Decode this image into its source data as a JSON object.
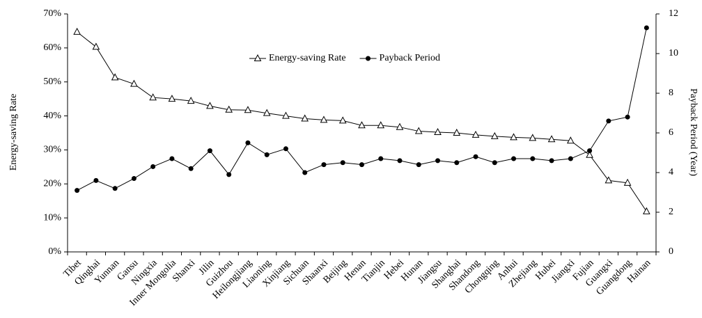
{
  "chart_data": {
    "type": "line",
    "y_label": "Energy-saving Rate",
    "y2_label": "Payback Period (Year)",
    "categories": [
      "Tibet",
      "Qinghai",
      "Yunnan",
      "Gansu",
      "Ningxia",
      "Inner Mongolia",
      "Shanxi",
      "Jilin",
      "Guizhou",
      "Heilongjiang",
      "Liaoning",
      "Xinjiang",
      "Sichuan",
      "Shaanxi",
      "Beijing",
      "Henan",
      "Tianjin",
      "Hebei",
      "Hunan",
      "Jiangsu",
      "Shanghai",
      "Shandong",
      "Chongqing",
      "Anhui",
      "Zhejiang",
      "Hubei",
      "Jiangxi",
      "Fujian",
      "Guangxi",
      "Guangdong",
      "Hainan"
    ],
    "series": [
      {
        "name": "Energy-saving Rate",
        "color": "#000000",
        "marker": "triangle",
        "axis": "y",
        "values": [
          64.7,
          60.3,
          51.3,
          49.4,
          45.4,
          45.0,
          44.4,
          42.9,
          41.8,
          41.7,
          40.8,
          40.0,
          39.2,
          38.8,
          38.6,
          37.2,
          37.2,
          36.7,
          35.5,
          35.2,
          35.0,
          34.4,
          34.0,
          33.7,
          33.5,
          33.1,
          32.7,
          28.5,
          21.0,
          20.3,
          11.9
        ]
      },
      {
        "name": "Payback Period",
        "color": "#000000",
        "marker": "circle",
        "axis": "y2",
        "values": [
          3.1,
          3.6,
          3.2,
          3.7,
          4.3,
          4.7,
          4.2,
          5.1,
          3.9,
          5.5,
          4.9,
          5.2,
          4.0,
          4.4,
          4.5,
          4.4,
          4.7,
          4.6,
          4.4,
          4.6,
          4.5,
          4.8,
          4.5,
          4.7,
          4.7,
          4.6,
          4.7,
          5.1,
          6.6,
          6.8,
          11.3
        ]
      }
    ],
    "ylim": [
      0,
      70
    ],
    "yticks": [
      {
        "value": 0,
        "label": "0%"
      },
      {
        "value": 10,
        "label": "10%"
      },
      {
        "value": 20,
        "label": "20%"
      },
      {
        "value": 30,
        "label": "30%"
      },
      {
        "value": 40,
        "label": "40%"
      },
      {
        "value": 50,
        "label": "50%"
      },
      {
        "value": 60,
        "label": "60%"
      },
      {
        "value": 70,
        "label": "70%"
      }
    ],
    "y2lim": [
      0,
      12
    ],
    "y2ticks": [
      0,
      2,
      4,
      6,
      8,
      10,
      12
    ],
    "legend": "top-center"
  }
}
